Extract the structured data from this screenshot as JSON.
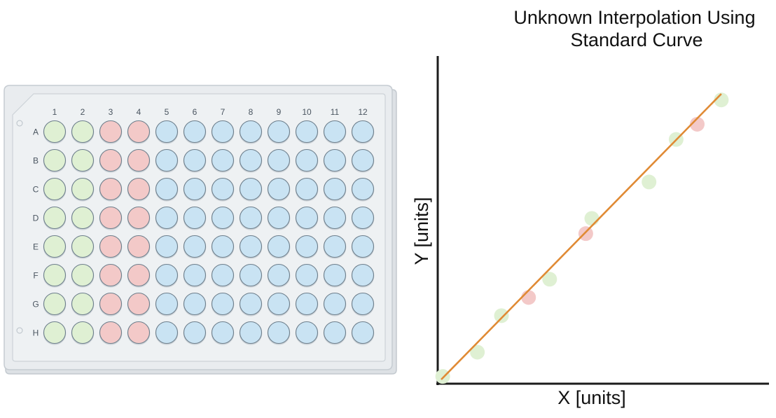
{
  "plate": {
    "column_labels": [
      "1",
      "2",
      "3",
      "4",
      "5",
      "6",
      "7",
      "8",
      "9",
      "10",
      "11",
      "12"
    ],
    "row_labels": [
      "A",
      "B",
      "C",
      "D",
      "E",
      "F",
      "G",
      "H"
    ],
    "column_groups": [
      {
        "columns": [
          1,
          2
        ],
        "well_type": "standard",
        "color": "#dff0d3"
      },
      {
        "columns": [
          3,
          4
        ],
        "well_type": "unknown",
        "color": "#f3c9c8"
      },
      {
        "columns": [
          5,
          6,
          7,
          8,
          9,
          10,
          11,
          12
        ],
        "well_type": "empty",
        "color": "#c9e3f3"
      }
    ],
    "colors": {
      "plate_body": "#e9ecef",
      "plate_border": "#c6ccd2",
      "well_stroke": "#6e7f8c"
    }
  },
  "chart": {
    "title_line1": "Unknown Interpolation Using",
    "title_line2": "Standard Curve"
  },
  "chart_data": {
    "type": "scatter",
    "title": "Unknown Interpolation Using Standard Curve",
    "xlabel": "X [units]",
    "ylabel": "Y [units]",
    "xlim": [
      0,
      10
    ],
    "ylim": [
      0,
      10
    ],
    "series": [
      {
        "role": "standard",
        "color": "#dff0d3",
        "points": [
          {
            "x": 0.05,
            "y": 0.1
          },
          {
            "x": 1.2,
            "y": 0.9
          },
          {
            "x": 2.0,
            "y": 2.1
          },
          {
            "x": 3.6,
            "y": 3.3
          },
          {
            "x": 5.0,
            "y": 5.3
          },
          {
            "x": 6.9,
            "y": 6.5
          },
          {
            "x": 7.8,
            "y": 7.9
          },
          {
            "x": 9.3,
            "y": 9.2
          }
        ]
      },
      {
        "role": "unknown",
        "color": "#f3c9c8",
        "points": [
          {
            "x": 2.9,
            "y": 2.7
          },
          {
            "x": 4.8,
            "y": 4.8
          },
          {
            "x": 8.5,
            "y": 8.4
          }
        ]
      }
    ],
    "fit_line": {
      "color": "#e08a34",
      "from": {
        "x": 0.0,
        "y": 0.0
      },
      "to": {
        "x": 9.3,
        "y": 9.4
      }
    },
    "grid": false
  }
}
